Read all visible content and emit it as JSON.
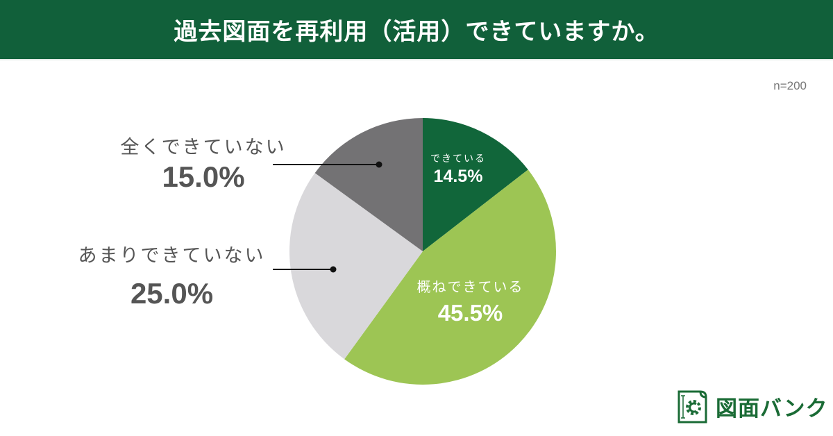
{
  "header": {
    "title": "過去図面を再利用（活用）できていますか。"
  },
  "sample_size": "n=200",
  "labels": {
    "done": {
      "category": "できている",
      "percent": "14.5%"
    },
    "mostly": {
      "category": "概ねできている",
      "percent": "45.5%"
    },
    "rarely": {
      "category": "あまりできていない",
      "percent": "25.0%"
    },
    "never": {
      "category": "全くできていない",
      "percent": "15.0%"
    }
  },
  "logo": {
    "text": "図面バンク",
    "icon": "blueprint-gear-icon"
  },
  "colors": {
    "header_bg": "#11603a",
    "done": "#11663a",
    "mostly": "#9dc554",
    "rarely": "#d9d8db",
    "never": "#737274",
    "logo": "#1a6b35"
  },
  "chart_data": {
    "type": "pie",
    "title": "過去図面を再利用（活用）できていますか。",
    "subtitle": "n=200",
    "start_angle": "12 o'clock, clockwise",
    "categories": [
      "できている",
      "概ねできている",
      "あまりできていない",
      "全くできていない"
    ],
    "values": [
      14.5,
      45.5,
      25.0,
      15.0
    ],
    "unit": "%",
    "colors": [
      "#11663a",
      "#9dc554",
      "#d9d8db",
      "#737274"
    ],
    "label_placement": [
      "inside",
      "inside",
      "outside-left with leader line",
      "outside-left with leader line"
    ]
  }
}
